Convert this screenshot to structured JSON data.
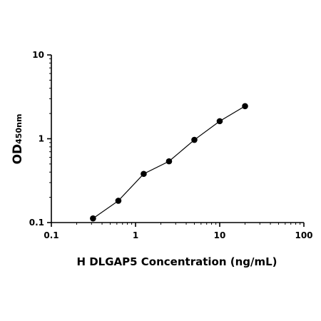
{
  "chart_data": {
    "type": "scatter",
    "xscale": "log",
    "yscale": "log",
    "xlim": [
      0.1,
      100
    ],
    "ylim": [
      0.1,
      10
    ],
    "x_ticks": [
      {
        "value": 0.1,
        "label": "0.1"
      },
      {
        "value": 1,
        "label": "1"
      },
      {
        "value": 10,
        "label": "10"
      },
      {
        "value": 100,
        "label": "100"
      }
    ],
    "y_ticks": [
      {
        "value": 0.1,
        "label": "0.1"
      },
      {
        "value": 1,
        "label": "1"
      },
      {
        "value": 10,
        "label": "10"
      }
    ],
    "xlabel": "H DLGAP5 Concentration (ng/mL)",
    "ylabel": {
      "main": "OD",
      "sub": "450nm"
    },
    "series": [
      {
        "points": [
          {
            "x": 0.3125,
            "y": 0.112
          },
          {
            "x": 0.625,
            "y": 0.182
          },
          {
            "x": 1.25,
            "y": 0.381
          },
          {
            "x": 2.5,
            "y": 0.538
          },
          {
            "x": 5,
            "y": 0.97
          },
          {
            "x": 10,
            "y": 1.62
          },
          {
            "x": 20,
            "y": 2.45
          }
        ],
        "fit_line": true,
        "color": "#000000"
      }
    ],
    "grid": false,
    "legend": "none"
  }
}
